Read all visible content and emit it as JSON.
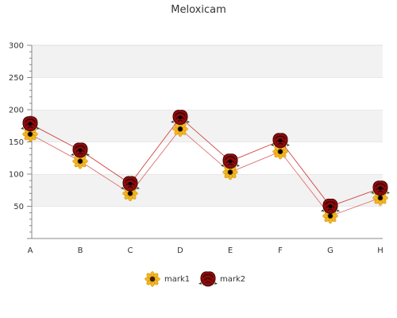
{
  "chart_data": {
    "type": "line",
    "title": "Meloxicam",
    "xlabel": "",
    "ylabel": "",
    "categories": [
      "A",
      "B",
      "C",
      "D",
      "E",
      "F",
      "G",
      "H"
    ],
    "ylim": [
      0,
      300
    ],
    "yticks": [
      50,
      100,
      150,
      200,
      250,
      300
    ],
    "grid": "horizontal alternating bands",
    "legend": "bottom",
    "series": [
      {
        "name": "mark1",
        "values": [
          162,
          120,
          70,
          170,
          103,
          135,
          35,
          63
        ],
        "marker": "sunflower-icon",
        "line_color": "#e07070"
      },
      {
        "name": "mark2",
        "values": [
          178,
          137,
          85,
          188,
          120,
          152,
          50,
          78
        ],
        "marker": "rose-icon",
        "line_color": "#d04040"
      }
    ]
  }
}
